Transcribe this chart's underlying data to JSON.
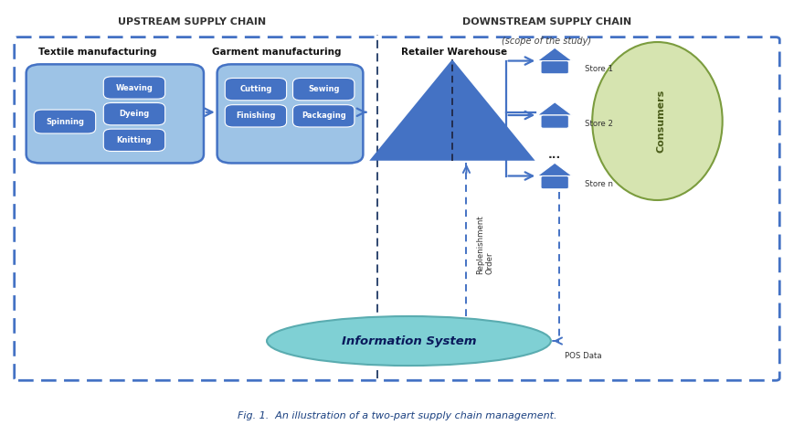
{
  "title": "Fig. 1.  An illustration of a two-part supply chain management.",
  "upstream_label": "UPSTREAM SUPPLY CHAIN",
  "downstream_label": "DOWNSTREAM SUPPLY CHAIN",
  "scope_label": "(scope of the study)",
  "textile_label": "Textile manufacturing",
  "garment_label": "Garment manufacturing",
  "warehouse_label": "Retailer Warehouse",
  "consumers_label": "Consumers",
  "info_system_label": "Information System",
  "replenishment_label": "Replenishment\nOrder",
  "pos_label": "POS Data",
  "stores": [
    "Store 1",
    "Store 2",
    "Store n"
  ],
  "box_bg_light": "#9DC3E6",
  "box_bg_dark": "#4472C4",
  "outer_box_color": "#4472C4",
  "consumer_blob_color": "#D6E4B0",
  "consumer_blob_edge": "#7B9C3E",
  "info_ellipse_color": "#7FD0D4",
  "info_ellipse_edge": "#5AACB0",
  "arrow_color": "#4472C4",
  "dashed_sep_color": "#1F3864",
  "replenish_color": "#4472C4",
  "pos_color": "#4472C4",
  "figsize": [
    8.69,
    4.65
  ],
  "dpi": 100
}
